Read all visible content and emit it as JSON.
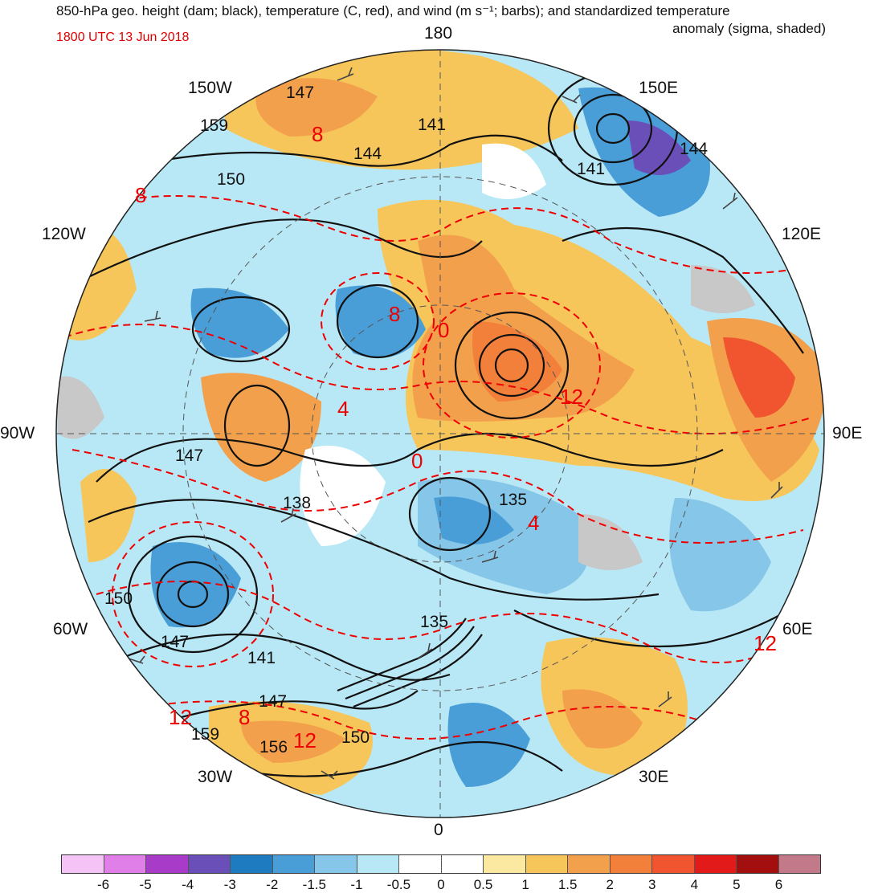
{
  "title": {
    "line1": "850-hPa geo. height (dam; black), temperature (C, red), and wind (m s⁻¹; barbs); and standardized temperature",
    "line2": "anomaly (sigma, shaded)",
    "valid_time": "1800 UTC 13 Jun 2018"
  },
  "map": {
    "projection": "north-polar-stereographic",
    "longitude_labels": {
      "lon_180": "180",
      "lon_150e": "150E",
      "lon_120e": "120E",
      "lon_90e": "90E",
      "lon_60e": "60E",
      "lon_30e": "30E",
      "lon_0": "0",
      "lon_30w": "30W",
      "lon_60w": "60W",
      "lon_90w": "90W",
      "lon_120w": "120W",
      "lon_150w": "150W"
    },
    "height_contour_labels": [
      "147",
      "159",
      "150",
      "141",
      "144",
      "141",
      "144",
      "147",
      "138",
      "135",
      "150",
      "147",
      "141",
      "147",
      "159",
      "156",
      "150",
      "135"
    ],
    "temperature_contour_labels": [
      "8",
      "8",
      "8",
      "0",
      "12",
      "4",
      "0",
      "4",
      "12",
      "8",
      "12",
      "12"
    ],
    "colors": {
      "height_contour": "#111111",
      "temperature_contour": "#ee0000",
      "wind_barb": "#444444",
      "land_neutral": "#c8c8c8"
    }
  },
  "colorbar": {
    "labels": [
      "-6",
      "-5",
      "-4",
      "-3",
      "-2",
      "-1.5",
      "-1",
      "-0.5",
      "0",
      "0.5",
      "1",
      "1.5",
      "2",
      "3",
      "4",
      "5",
      "6"
    ],
    "colors": [
      "#f5c3f5",
      "#e07fe8",
      "#a83cc8",
      "#6a4fb8",
      "#1f7bc0",
      "#4a9ed8",
      "#86c6e8",
      "#b8e8f6",
      "#ffffff",
      "#ffffff",
      "#fbe9a2",
      "#f6c65a",
      "#f3a04c",
      "#f27f3a",
      "#f0552f",
      "#e31a1a",
      "#a30e0e",
      "#c27a8a"
    ]
  }
}
